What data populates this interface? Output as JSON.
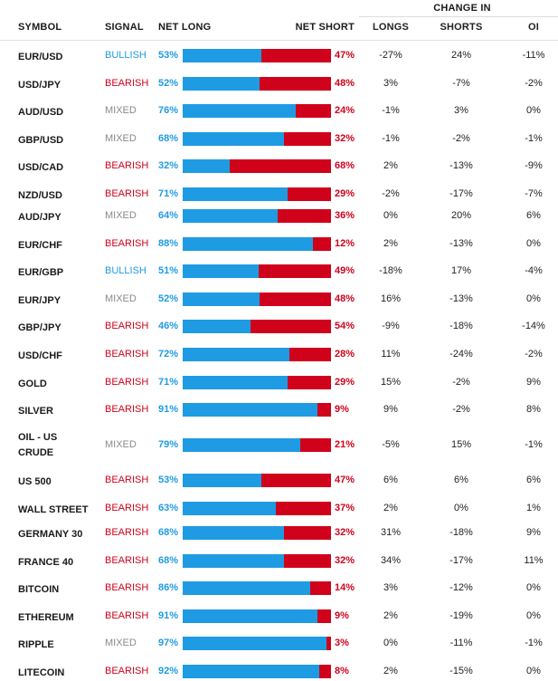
{
  "header": {
    "symbol": "SYMBOL",
    "signal": "SIGNAL",
    "net_long": "NET LONG",
    "net_short": "NET SHORT",
    "change_in": "CHANGE IN",
    "longs": "LONGS",
    "shorts": "SHORTS",
    "oi": "OI"
  },
  "colors": {
    "long_bar": "#1f9be3",
    "short_bar": "#d0021b",
    "bullish": "#1f9be3",
    "bearish": "#d0021b",
    "mixed": "#8a8a8a"
  },
  "rows": [
    {
      "symbol": "EUR/USD",
      "signal": "BULLISH",
      "net_long": "53%",
      "net_short": "47%",
      "longs": "-27%",
      "shorts": "24%",
      "oi": "-11%",
      "long_fraction": 0.53
    },
    {
      "symbol": "USD/JPY",
      "signal": "BEARISH",
      "net_long": "52%",
      "net_short": "48%",
      "longs": "3%",
      "shorts": "-7%",
      "oi": "-2%",
      "long_fraction": 0.52
    },
    {
      "symbol": "AUD/USD",
      "signal": "MIXED",
      "net_long": "76%",
      "net_short": "24%",
      "longs": "-1%",
      "shorts": "3%",
      "oi": "0%",
      "long_fraction": 0.76
    },
    {
      "symbol": "GBP/USD",
      "signal": "MIXED",
      "net_long": "68%",
      "net_short": "32%",
      "longs": "-1%",
      "shorts": "-2%",
      "oi": "-1%",
      "long_fraction": 0.68
    },
    {
      "symbol": "USD/CAD",
      "signal": "BEARISH",
      "net_long": "32%",
      "net_short": "68%",
      "longs": "2%",
      "shorts": "-13%",
      "oi": "-9%",
      "long_fraction": 0.32
    },
    {
      "symbol": "NZD/USD",
      "signal": "BEARISH",
      "net_long": "71%",
      "net_short": "29%",
      "longs": "-2%",
      "shorts": "-17%",
      "oi": "-7%",
      "long_fraction": 0.71
    },
    {
      "symbol": "AUD/JPY",
      "signal": "MIXED",
      "net_long": "64%",
      "net_short": "36%",
      "longs": "0%",
      "shorts": "20%",
      "oi": "6%",
      "long_fraction": 0.64
    },
    {
      "symbol": "EUR/CHF",
      "signal": "BEARISH",
      "net_long": "88%",
      "net_short": "12%",
      "longs": "2%",
      "shorts": "-13%",
      "oi": "0%",
      "long_fraction": 0.88
    },
    {
      "symbol": "EUR/GBP",
      "signal": "BULLISH",
      "net_long": "51%",
      "net_short": "49%",
      "longs": "-18%",
      "shorts": "17%",
      "oi": "-4%",
      "long_fraction": 0.51
    },
    {
      "symbol": "EUR/JPY",
      "signal": "MIXED",
      "net_long": "52%",
      "net_short": "48%",
      "longs": "16%",
      "shorts": "-13%",
      "oi": "0%",
      "long_fraction": 0.52
    },
    {
      "symbol": "GBP/JPY",
      "signal": "BEARISH",
      "net_long": "46%",
      "net_short": "54%",
      "longs": "-9%",
      "shorts": "-18%",
      "oi": "-14%",
      "long_fraction": 0.46
    },
    {
      "symbol": "USD/CHF",
      "signal": "BEARISH",
      "net_long": "72%",
      "net_short": "28%",
      "longs": "11%",
      "shorts": "-24%",
      "oi": "-2%",
      "long_fraction": 0.72
    },
    {
      "symbol": "GOLD",
      "signal": "BEARISH",
      "net_long": "71%",
      "net_short": "29%",
      "longs": "15%",
      "shorts": "-2%",
      "oi": "9%",
      "long_fraction": 0.71
    },
    {
      "symbol": "SILVER",
      "signal": "BEARISH",
      "net_long": "91%",
      "net_short": "9%",
      "longs": "9%",
      "shorts": "-2%",
      "oi": "8%",
      "long_fraction": 0.91
    },
    {
      "symbol": "OIL - US CRUDE",
      "symbol_line1": "OIL - US",
      "symbol_line2": "CRUDE",
      "signal": "MIXED",
      "net_long": "79%",
      "net_short": "21%",
      "longs": "-5%",
      "shorts": "15%",
      "oi": "-1%",
      "long_fraction": 0.79
    },
    {
      "symbol": "US 500",
      "signal": "BEARISH",
      "net_long": "53%",
      "net_short": "47%",
      "longs": "6%",
      "shorts": "6%",
      "oi": "6%",
      "long_fraction": 0.53
    },
    {
      "symbol": "WALL STREET",
      "signal": "BEARISH",
      "net_long": "63%",
      "net_short": "37%",
      "longs": "2%",
      "shorts": "0%",
      "oi": "1%",
      "long_fraction": 0.63
    },
    {
      "symbol": "GERMANY 30",
      "signal": "BEARISH",
      "net_long": "68%",
      "net_short": "32%",
      "longs": "31%",
      "shorts": "-18%",
      "oi": "9%",
      "long_fraction": 0.68
    },
    {
      "symbol": "FRANCE 40",
      "signal": "BEARISH",
      "net_long": "68%",
      "net_short": "32%",
      "longs": "34%",
      "shorts": "-17%",
      "oi": "11%",
      "long_fraction": 0.68
    },
    {
      "symbol": "BITCOIN",
      "signal": "BEARISH",
      "net_long": "86%",
      "net_short": "14%",
      "longs": "3%",
      "shorts": "-12%",
      "oi": "0%",
      "long_fraction": 0.86
    },
    {
      "symbol": "ETHEREUM",
      "signal": "BEARISH",
      "net_long": "91%",
      "net_short": "9%",
      "longs": "2%",
      "shorts": "-19%",
      "oi": "0%",
      "long_fraction": 0.91
    },
    {
      "symbol": "RIPPLE",
      "signal": "MIXED",
      "net_long": "97%",
      "net_short": "3%",
      "longs": "0%",
      "shorts": "-11%",
      "oi": "-1%",
      "long_fraction": 0.97
    },
    {
      "symbol": "LITECOIN",
      "signal": "BEARISH",
      "net_long": "92%",
      "net_short": "8%",
      "longs": "2%",
      "shorts": "-15%",
      "oi": "0%",
      "long_fraction": 0.92
    }
  ]
}
